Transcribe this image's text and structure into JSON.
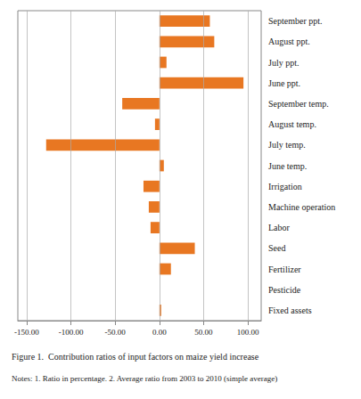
{
  "chart_data": {
    "type": "bar",
    "orientation": "horizontal",
    "title": "Figure 1.  Contribution ratios of input factors on maize yield increase",
    "annotations": [
      "Notes: 1. Ratio in percentage. 2. Average ratio from 2003 to 2010 (simple average)"
    ],
    "categories": [
      "Fixed assets",
      "Pesticide",
      "Fertilizer",
      "Seed",
      "Labor",
      "Machine operation",
      "Irrigation",
      "June temp.",
      "July temp.",
      "August temp.",
      "September temp.",
      "June ppt.",
      "July ppt.",
      "August ppt.",
      "September ppt."
    ],
    "values": [
      2.0,
      0.0,
      13.0,
      40.0,
      -10.0,
      -12.0,
      -18.0,
      5.0,
      -128.0,
      -5.0,
      -42.0,
      95.0,
      8.0,
      62.0,
      57.0
    ],
    "color": "#E87722",
    "xlim": [
      -160,
      115
    ],
    "xticks": [
      {
        "value": -150,
        "label": "-150.00"
      },
      {
        "value": -100,
        "label": "-100.00"
      },
      {
        "value": -50,
        "label": "-50.00"
      },
      {
        "value": 0,
        "label": "0.00"
      },
      {
        "value": 50,
        "label": "50.00"
      },
      {
        "value": 100,
        "label": "100.00"
      }
    ],
    "grid": true
  }
}
